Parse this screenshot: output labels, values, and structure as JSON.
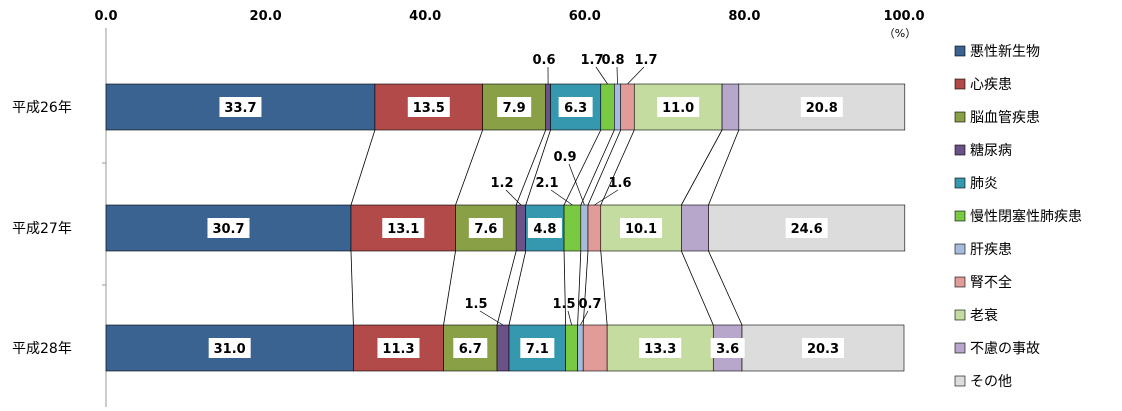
{
  "chart_data": {
    "type": "bar",
    "stacked": true,
    "orientation": "horizontal",
    "unit_label": "（%）",
    "xlim": [
      0,
      100
    ],
    "x_ticks": [
      "0.0",
      "20.0",
      "40.0",
      "60.0",
      "80.0",
      "100.0"
    ],
    "categories": [
      "平成26年",
      "平成27年",
      "平成28年"
    ],
    "series": [
      {
        "name": "悪性新生物",
        "color": "#3b6391",
        "values": [
          33.7,
          30.7,
          31.0
        ]
      },
      {
        "name": "心疾患",
        "color": "#b14a49",
        "values": [
          13.5,
          13.1,
          11.3
        ]
      },
      {
        "name": "脳血管疾患",
        "color": "#8aa047",
        "values": [
          7.9,
          7.6,
          6.7
        ]
      },
      {
        "name": "糖尿病",
        "color": "#6a5187",
        "values": [
          0.6,
          1.2,
          1.5
        ]
      },
      {
        "name": "肺炎",
        "color": "#3598ae",
        "values": [
          6.3,
          4.8,
          7.1
        ]
      },
      {
        "name": "慢性閉塞性肺疾患",
        "color": "#7ac943",
        "values": [
          1.7,
          2.1,
          1.5
        ]
      },
      {
        "name": "肝疾患",
        "color": "#a7bcdd",
        "values": [
          0.8,
          0.9,
          0.7
        ]
      },
      {
        "name": "腎不全",
        "color": "#e19b98",
        "values": [
          1.7,
          1.6,
          3.0
        ]
      },
      {
        "name": "老衰",
        "color": "#c5dca0",
        "values": [
          11.0,
          10.1,
          13.3
        ]
      },
      {
        "name": "不慮の事故",
        "color": "#b6a7cb",
        "values": [
          2.1,
          3.4,
          3.6
        ]
      },
      {
        "name": "その他",
        "color": "#dcdcdc",
        "values": [
          20.8,
          24.6,
          20.3
        ]
      }
    ],
    "legend_position": "right",
    "grid": false
  }
}
